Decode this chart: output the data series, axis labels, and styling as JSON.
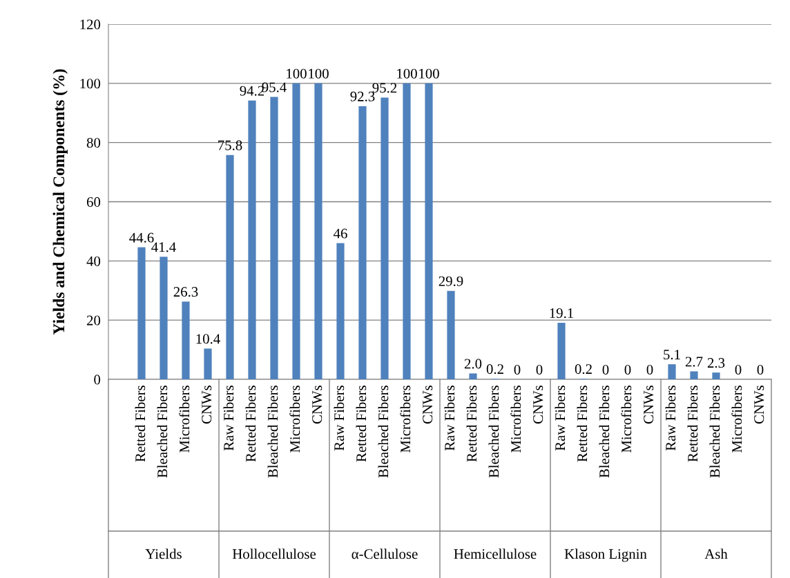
{
  "chart_data": {
    "type": "bar",
    "ylabel": "Yields and Chemical Components (%)",
    "categories": [
      null,
      "Retted Fibers",
      "Bleached Fibers",
      "Microfibers",
      "CNWs",
      "Raw Fibers",
      "Retted Fibers",
      "Bleached Fibers",
      "Microfibers",
      "CNWs",
      "Raw Fibers",
      "Retted Fibers",
      "Bleached Fibers",
      "Microfibers",
      "CNWs",
      "Raw Fibers",
      "Retted Fibers",
      "Bleached Fibers",
      "Microfibers",
      "CNWs",
      "Raw Fibers",
      "Retted Fibers",
      "Bleached Fibers",
      "Microfibers",
      "CNWs",
      "Raw Fibers",
      "Retted Fibers",
      "Bleached Fibers",
      "Microfibers",
      "CNWs"
    ],
    "values": [
      null,
      44.6,
      41.4,
      26.3,
      10.4,
      75.8,
      94.2,
      95.4,
      100,
      100,
      46,
      92.3,
      95.2,
      100,
      100,
      29.9,
      2.0,
      0.2,
      0,
      0,
      19.1,
      0.2,
      0,
      0,
      0,
      5.1,
      2.7,
      2.3,
      0,
      0
    ],
    "value_labels": [
      null,
      "44.6",
      "41.4",
      "26.3",
      "10.4",
      "75.8",
      "94.2",
      "95.4",
      "100",
      "100",
      "46",
      "92.3",
      "95.2",
      "100",
      "100",
      "29.9",
      "2.0",
      "0.2",
      "0",
      "0",
      "19.1",
      "0.2",
      "0",
      "0",
      "0",
      "5.1",
      "2.7",
      "2.3",
      "0",
      "0"
    ],
    "color": "#4f81bd",
    "annotations": [
      "Yields",
      "Hollocellulose",
      "α-Cellulose",
      "Hemicellulose",
      "Klason Lignin",
      "Ash"
    ],
    "ylim": [
      0,
      120
    ],
    "yticks": [
      0,
      20,
      40,
      60,
      80,
      100,
      120
    ],
    "grid": "y"
  }
}
